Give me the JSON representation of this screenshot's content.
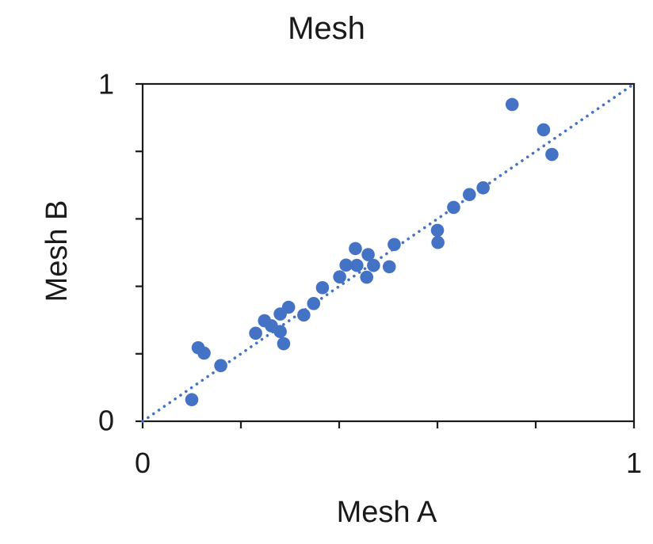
{
  "chart_data": {
    "type": "scatter",
    "title": "Mesh",
    "xlabel": "Mesh A",
    "ylabel": "Mesh B",
    "xlim": [
      0,
      1
    ],
    "ylim": [
      0,
      1
    ],
    "x_tick_labels": [
      "0",
      "1"
    ],
    "y_tick_labels": [
      "0",
      "1"
    ],
    "tick_values": [
      0,
      0.2,
      0.4,
      0.6,
      0.8,
      1
    ],
    "grid": false,
    "legend": false,
    "marker_color": "#4472C4",
    "axis_color": "#1a1a1a",
    "reference_line": {
      "style": "dotted",
      "color": "#4472C4",
      "x": [
        0,
        1
      ],
      "y": [
        0,
        1
      ]
    },
    "points": [
      {
        "x": 0.1,
        "y": 0.064
      },
      {
        "x": 0.113,
        "y": 0.218
      },
      {
        "x": 0.125,
        "y": 0.202
      },
      {
        "x": 0.159,
        "y": 0.165
      },
      {
        "x": 0.23,
        "y": 0.261
      },
      {
        "x": 0.248,
        "y": 0.298
      },
      {
        "x": 0.262,
        "y": 0.283
      },
      {
        "x": 0.28,
        "y": 0.318
      },
      {
        "x": 0.297,
        "y": 0.338
      },
      {
        "x": 0.328,
        "y": 0.315
      },
      {
        "x": 0.28,
        "y": 0.266
      },
      {
        "x": 0.287,
        "y": 0.23
      },
      {
        "x": 0.348,
        "y": 0.349
      },
      {
        "x": 0.366,
        "y": 0.396
      },
      {
        "x": 0.401,
        "y": 0.428
      },
      {
        "x": 0.414,
        "y": 0.463
      },
      {
        "x": 0.433,
        "y": 0.512
      },
      {
        "x": 0.436,
        "y": 0.462
      },
      {
        "x": 0.456,
        "y": 0.427
      },
      {
        "x": 0.459,
        "y": 0.494
      },
      {
        "x": 0.47,
        "y": 0.462
      },
      {
        "x": 0.502,
        "y": 0.458
      },
      {
        "x": 0.512,
        "y": 0.524
      },
      {
        "x": 0.6,
        "y": 0.566
      },
      {
        "x": 0.601,
        "y": 0.53
      },
      {
        "x": 0.633,
        "y": 0.634
      },
      {
        "x": 0.665,
        "y": 0.672
      },
      {
        "x": 0.693,
        "y": 0.692
      },
      {
        "x": 0.752,
        "y": 0.939
      },
      {
        "x": 0.816,
        "y": 0.864
      },
      {
        "x": 0.833,
        "y": 0.791
      }
    ]
  }
}
